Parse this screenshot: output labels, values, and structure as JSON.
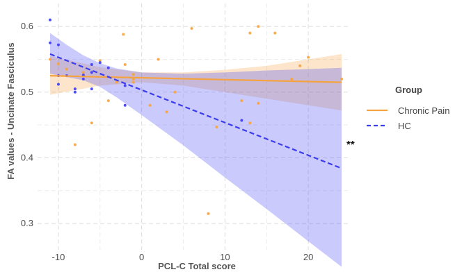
{
  "chart_data": {
    "type": "scatter",
    "xlabel": "PCL-C Total score",
    "ylabel": "FA values - Uncinate Fasciculus",
    "xlim": [
      -12.5,
      25
    ],
    "ylim": [
      0.26,
      0.635
    ],
    "x_ticks": [
      -10,
      0,
      10,
      20
    ],
    "y_ticks": [
      0.3,
      0.4,
      0.5,
      0.6
    ],
    "grid": true,
    "legend": {
      "title": "Group",
      "position": "right"
    },
    "annotation": "**",
    "series": [
      {
        "name": "Chronic Pain",
        "color": "#F5A340",
        "line_style": "solid",
        "fit": {
          "x": [
            -11,
            24
          ],
          "y": [
            0.525,
            0.515
          ]
        },
        "ci_upper": [
          [
            -11,
            0.555
          ],
          [
            -5,
            0.538
          ],
          [
            0,
            0.53
          ],
          [
            5,
            0.53
          ],
          [
            10,
            0.534
          ],
          [
            15,
            0.54
          ],
          [
            20,
            0.55
          ],
          [
            24,
            0.558
          ]
        ],
        "ci_lower": [
          [
            -11,
            0.496
          ],
          [
            -5,
            0.51
          ],
          [
            0,
            0.515
          ],
          [
            5,
            0.51
          ],
          [
            10,
            0.5
          ],
          [
            15,
            0.49
          ],
          [
            20,
            0.48
          ],
          [
            24,
            0.472
          ]
        ],
        "points": [
          [
            -11,
            0.55
          ],
          [
            -10,
            0.543
          ],
          [
            -9,
            0.535
          ],
          [
            -8,
            0.42
          ],
          [
            -7,
            0.53
          ],
          [
            -6,
            0.453
          ],
          [
            -5,
            0.548
          ],
          [
            -4,
            0.487
          ],
          [
            -3,
            0.515
          ],
          [
            -2.2,
            0.588
          ],
          [
            -2,
            0.542
          ],
          [
            -1,
            0.52
          ],
          [
            -1,
            0.527
          ],
          [
            -1,
            0.515
          ],
          [
            1,
            0.48
          ],
          [
            2,
            0.55
          ],
          [
            3,
            0.47
          ],
          [
            4,
            0.5
          ],
          [
            6,
            0.597
          ],
          [
            8,
            0.315
          ],
          [
            9,
            0.447
          ],
          [
            12,
            0.487
          ],
          [
            13,
            0.59
          ],
          [
            14,
            0.6
          ],
          [
            13,
            0.453
          ],
          [
            14,
            0.483
          ],
          [
            16,
            0.59
          ],
          [
            18,
            0.52
          ],
          [
            19,
            0.54
          ],
          [
            20,
            0.553
          ],
          [
            24,
            0.52
          ]
        ]
      },
      {
        "name": "HC",
        "color": "#3B3BF0",
        "line_style": "dashed",
        "fit": {
          "x": [
            -11,
            24
          ],
          "y": [
            0.558,
            0.384
          ]
        },
        "ci_upper": [
          [
            -11,
            0.59
          ],
          [
            -9,
            0.572
          ],
          [
            -7,
            0.556
          ],
          [
            -5,
            0.544
          ],
          [
            -3,
            0.536
          ],
          [
            0,
            0.53
          ],
          [
            5,
            0.528
          ],
          [
            10,
            0.53
          ],
          [
            15,
            0.533
          ],
          [
            20,
            0.535
          ],
          [
            24,
            0.537
          ]
        ],
        "ci_lower": [
          [
            -11,
            0.528
          ],
          [
            -9,
            0.523
          ],
          [
            -7,
            0.518
          ],
          [
            -5,
            0.508
          ],
          [
            -3,
            0.492
          ],
          [
            0,
            0.465
          ],
          [
            5,
            0.419
          ],
          [
            10,
            0.37
          ],
          [
            15,
            0.322
          ],
          [
            20,
            0.273
          ],
          [
            24,
            0.234
          ]
        ],
        "points": [
          [
            -11,
            0.61
          ],
          [
            -11,
            0.575
          ],
          [
            -10,
            0.572
          ],
          [
            -10,
            0.525
          ],
          [
            -10,
            0.512
          ],
          [
            -9,
            0.525
          ],
          [
            -8,
            0.505
          ],
          [
            -8,
            0.5
          ],
          [
            -7,
            0.526
          ],
          [
            -7,
            0.52
          ],
          [
            -6,
            0.542
          ],
          [
            -6,
            0.53
          ],
          [
            -6,
            0.505
          ],
          [
            -5,
            0.545
          ],
          [
            -4,
            0.537
          ],
          [
            -2,
            0.51
          ],
          [
            -2,
            0.48
          ],
          [
            12,
            0.457
          ]
        ]
      }
    ]
  }
}
